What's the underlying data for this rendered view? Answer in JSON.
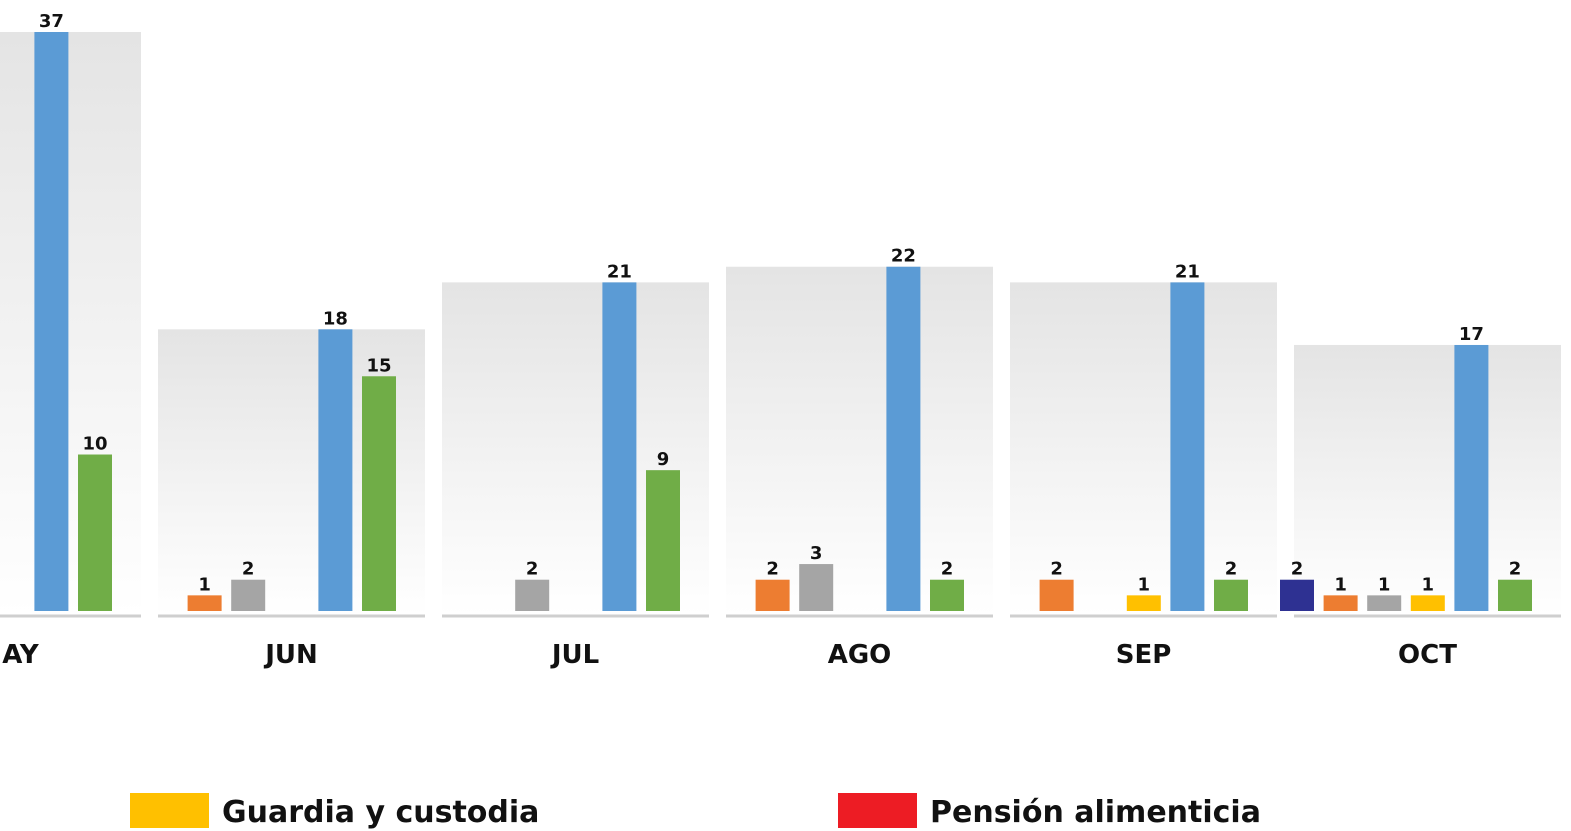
{
  "chart_data": {
    "type": "bar",
    "categories": [
      "MAY",
      "JUN",
      "JUL",
      "AGO",
      "SEP",
      "OCT"
    ],
    "series": [
      {
        "color": "#2e3192",
        "values": [
          null,
          null,
          null,
          null,
          null,
          2
        ]
      },
      {
        "color": "#ed7d31",
        "values": [
          null,
          1,
          null,
          2,
          2,
          1
        ]
      },
      {
        "color": "#a5a5a5",
        "values": [
          null,
          2,
          2,
          3,
          null,
          1
        ]
      },
      {
        "name": "Guardia y custodia",
        "color": "#ffc000",
        "values": [
          null,
          null,
          null,
          null,
          1,
          1
        ]
      },
      {
        "color": "#5b9bd5",
        "values": [
          37,
          18,
          21,
          22,
          21,
          17
        ]
      },
      {
        "color": "#70ad47",
        "values": [
          10,
          15,
          9,
          2,
          2,
          2
        ]
      },
      {
        "name": "Pensión alimenticia",
        "color": "#ed1c24",
        "values": [
          null,
          null,
          null,
          null,
          null,
          null
        ]
      }
    ]
  }
}
